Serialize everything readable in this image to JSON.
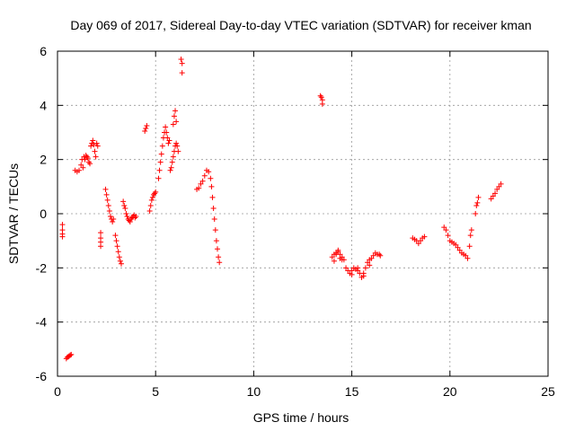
{
  "chart_data": {
    "type": "scatter",
    "title": "Day 069 of 2017, Sidereal Day-to-day VTEC variation (SDTVAR) for receiver kman",
    "xlabel": "GPS time / hours",
    "ylabel": "SDTVAR / TECUs",
    "xlim": [
      0,
      25
    ],
    "ylim": [
      -6,
      6
    ],
    "xticks": [
      0,
      5,
      10,
      15,
      20,
      25
    ],
    "yticks": [
      -6,
      -4,
      -2,
      0,
      2,
      4,
      6
    ],
    "grid": true,
    "marker": "+",
    "color": "#ff0000",
    "series": [
      {
        "name": "SDTVAR",
        "x": [
          0.25,
          0.25,
          0.25,
          0.25,
          0.45,
          0.5,
          0.55,
          0.6,
          0.65,
          0.7,
          0.9,
          1.0,
          1.1,
          1.2,
          1.25,
          1.3,
          1.35,
          1.4,
          1.45,
          1.5,
          1.55,
          1.6,
          1.65,
          1.7,
          1.75,
          1.8,
          1.85,
          1.9,
          1.95,
          2.0,
          2.05,
          2.2,
          2.2,
          2.2,
          2.2,
          2.45,
          2.5,
          2.55,
          2.6,
          2.65,
          2.7,
          2.75,
          2.8,
          2.85,
          2.95,
          3.0,
          3.05,
          3.1,
          3.15,
          3.2,
          3.25,
          3.35,
          3.4,
          3.45,
          3.5,
          3.55,
          3.6,
          3.65,
          3.7,
          3.75,
          3.8,
          3.85,
          3.9,
          3.95,
          4.0,
          4.45,
          4.5,
          4.55,
          4.7,
          4.75,
          4.8,
          4.85,
          4.9,
          4.95,
          5.0,
          5.15,
          5.2,
          5.25,
          5.3,
          5.35,
          5.4,
          5.45,
          5.5,
          5.55,
          5.6,
          5.65,
          5.7,
          5.75,
          5.8,
          5.85,
          5.9,
          5.95,
          6.0,
          6.05,
          6.1,
          6.15,
          5.9,
          5.95,
          6.0,
          6.05,
          6.3,
          6.35,
          6.35,
          7.1,
          7.2,
          7.3,
          7.4,
          7.5,
          7.6,
          7.7,
          7.8,
          7.85,
          7.9,
          7.95,
          8.0,
          8.05,
          8.1,
          8.15,
          8.2,
          8.25,
          13.4,
          13.45,
          13.5,
          13.5,
          14.0,
          14.1,
          14.2,
          14.3,
          14.4,
          14.5,
          14.6,
          14.7,
          14.8,
          14.9,
          15.0,
          15.1,
          15.2,
          15.3,
          15.4,
          15.5,
          15.6,
          15.7,
          15.8,
          15.9,
          16.0,
          16.1,
          16.2,
          16.3,
          16.4,
          16.45,
          14.1,
          14.2,
          14.3,
          14.4,
          14.5,
          15.0,
          15.3,
          15.6,
          15.9,
          18.1,
          18.2,
          18.3,
          18.4,
          18.5,
          18.6,
          18.7,
          19.7,
          19.8,
          19.9,
          20.0,
          20.1,
          20.2,
          20.3,
          20.4,
          20.5,
          20.6,
          20.7,
          20.8,
          20.9,
          21.0,
          21.05,
          21.1,
          21.3,
          21.35,
          21.4,
          21.45,
          22.1,
          22.2,
          22.3,
          22.4,
          22.5,
          22.6
        ],
        "y": [
          -0.4,
          -0.6,
          -0.75,
          -0.85,
          -5.35,
          -5.3,
          -5.28,
          -5.25,
          -5.22,
          -5.2,
          1.6,
          1.55,
          1.6,
          1.8,
          2.0,
          1.7,
          2.1,
          2.0,
          2.15,
          2.1,
          2.05,
          1.9,
          1.85,
          2.5,
          2.6,
          2.7,
          2.55,
          2.3,
          2.1,
          2.6,
          2.5,
          -0.7,
          -0.9,
          -1.05,
          -1.2,
          0.9,
          0.7,
          0.5,
          0.3,
          0.1,
          -0.1,
          -0.2,
          -0.3,
          -0.2,
          -0.8,
          -1.0,
          -1.2,
          -1.4,
          -1.6,
          -1.75,
          -1.85,
          0.45,
          0.3,
          0.2,
          0.0,
          -0.1,
          -0.2,
          -0.25,
          -0.3,
          -0.2,
          -0.15,
          -0.1,
          -0.05,
          -0.15,
          -0.1,
          3.05,
          3.15,
          3.25,
          0.1,
          0.3,
          0.5,
          0.6,
          0.7,
          0.75,
          0.8,
          1.3,
          1.6,
          1.9,
          2.2,
          2.5,
          2.8,
          3.0,
          3.2,
          3.0,
          2.8,
          2.6,
          2.7,
          1.6,
          1.7,
          1.9,
          2.1,
          2.3,
          2.5,
          2.6,
          2.5,
          2.3,
          3.3,
          3.6,
          3.8,
          3.4,
          5.7,
          5.55,
          5.2,
          0.9,
          0.95,
          1.1,
          1.2,
          1.4,
          1.6,
          1.55,
          1.3,
          1.0,
          0.6,
          0.2,
          -0.2,
          -0.6,
          -1.0,
          -1.3,
          -1.6,
          -1.8,
          4.35,
          4.3,
          4.2,
          4.05,
          -1.6,
          -1.75,
          -1.5,
          -1.4,
          -1.5,
          -1.6,
          -1.7,
          -2.0,
          -2.1,
          -2.2,
          -2.1,
          -2.0,
          -2.05,
          -2.1,
          -2.2,
          -2.35,
          -2.2,
          -2.0,
          -1.8,
          -1.7,
          -1.65,
          -1.55,
          -1.45,
          -1.5,
          -1.5,
          -1.55,
          -1.5,
          -1.45,
          -1.35,
          -1.65,
          -1.7,
          -2.25,
          -2.0,
          -2.3,
          -1.9,
          -0.9,
          -0.95,
          -1.0,
          -1.1,
          -1.0,
          -0.9,
          -0.85,
          -0.5,
          -0.6,
          -0.8,
          -1.0,
          -1.05,
          -1.1,
          -1.15,
          -1.25,
          -1.35,
          -1.45,
          -1.5,
          -1.55,
          -1.65,
          -1.2,
          -0.8,
          -0.6,
          0.0,
          0.3,
          0.4,
          0.6,
          0.55,
          0.65,
          0.75,
          0.9,
          1.0,
          1.1
        ]
      }
    ]
  }
}
